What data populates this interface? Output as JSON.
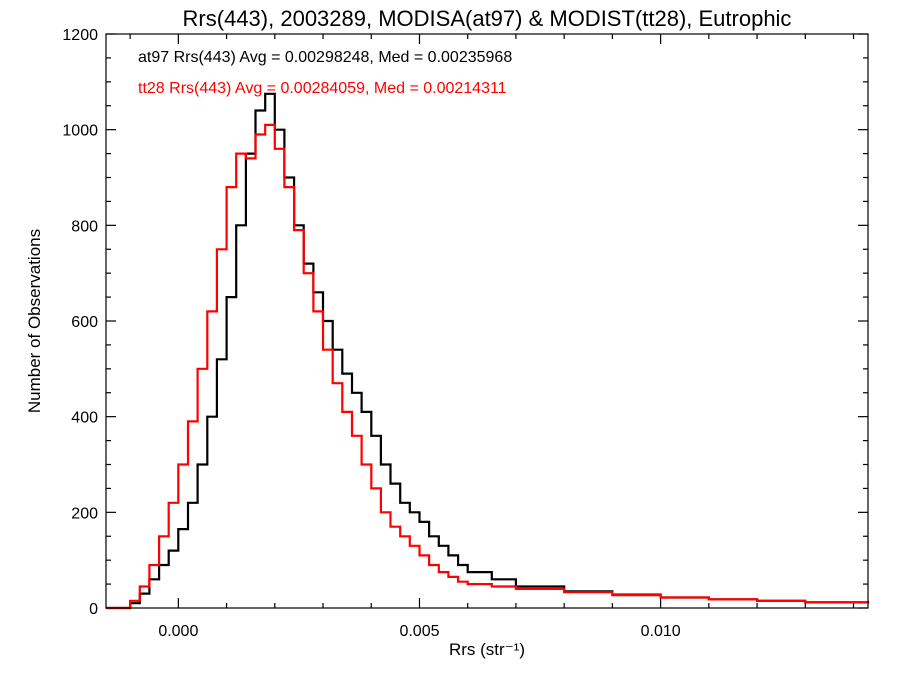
{
  "chart_data": {
    "type": "line",
    "style": "step-histogram",
    "title": "Rrs(443), 2003289, MODISA(at97) & MODIST(tt28), Eutrophic",
    "xlabel": "Rrs (str⁻¹)",
    "ylabel": "Number of Observations",
    "xlim": [
      -0.0015,
      0.0143
    ],
    "ylim": [
      0,
      1200
    ],
    "xticks": [
      0.0,
      0.005,
      0.01
    ],
    "xtick_labels": [
      "0.000",
      "0.005",
      "0.010"
    ],
    "yticks": [
      0,
      200,
      400,
      600,
      800,
      1000,
      1200
    ],
    "ytick_labels": [
      "0",
      "200",
      "400",
      "600",
      "800",
      "1000",
      "1200"
    ],
    "grid": false,
    "legend_placement": "top-left",
    "series": [
      {
        "name": "at97",
        "color": "#000000",
        "stats_label": "at97 Rrs(443) Avg = 0.00298248, Med = 0.00235968",
        "x": [
          -0.0015,
          -0.001,
          -0.0008,
          -0.0006,
          -0.0004,
          -0.0002,
          0.0,
          0.0002,
          0.0004,
          0.0006,
          0.0008,
          0.001,
          0.0012,
          0.0014,
          0.0016,
          0.0018,
          0.002,
          0.0022,
          0.0024,
          0.0026,
          0.0028,
          0.003,
          0.0032,
          0.0034,
          0.0036,
          0.0038,
          0.004,
          0.0042,
          0.0044,
          0.0046,
          0.0048,
          0.005,
          0.0052,
          0.0054,
          0.0056,
          0.0058,
          0.006,
          0.0065,
          0.007,
          0.008,
          0.009,
          0.01,
          0.011,
          0.012,
          0.013,
          0.0143
        ],
        "y": [
          0,
          10,
          30,
          60,
          90,
          120,
          165,
          220,
          300,
          400,
          520,
          650,
          800,
          950,
          1040,
          1075,
          1000,
          900,
          800,
          720,
          660,
          600,
          540,
          490,
          450,
          410,
          360,
          300,
          260,
          220,
          200,
          180,
          150,
          130,
          110,
          90,
          75,
          60,
          45,
          35,
          28,
          22,
          18,
          15,
          12,
          10
        ]
      },
      {
        "name": "tt28",
        "color": "#ff0000",
        "stats_label": "tt28 Rrs(443) Avg = 0.00284059, Med = 0.00214311",
        "x": [
          -0.0015,
          -0.001,
          -0.0008,
          -0.0006,
          -0.0004,
          -0.0002,
          0.0,
          0.0002,
          0.0004,
          0.0006,
          0.0008,
          0.001,
          0.0012,
          0.0014,
          0.0016,
          0.0018,
          0.002,
          0.0022,
          0.0024,
          0.0026,
          0.0028,
          0.003,
          0.0032,
          0.0034,
          0.0036,
          0.0038,
          0.004,
          0.0042,
          0.0044,
          0.0046,
          0.0048,
          0.005,
          0.0052,
          0.0054,
          0.0056,
          0.0058,
          0.006,
          0.0065,
          0.007,
          0.008,
          0.009,
          0.01,
          0.011,
          0.012,
          0.013,
          0.0143
        ],
        "y": [
          0,
          15,
          45,
          90,
          150,
          220,
          300,
          390,
          500,
          620,
          750,
          880,
          950,
          940,
          990,
          1010,
          960,
          880,
          790,
          700,
          620,
          540,
          470,
          410,
          360,
          300,
          250,
          200,
          170,
          150,
          130,
          110,
          90,
          75,
          65,
          55,
          50,
          45,
          40,
          33,
          27,
          22,
          18,
          15,
          12,
          10
        ]
      }
    ]
  }
}
